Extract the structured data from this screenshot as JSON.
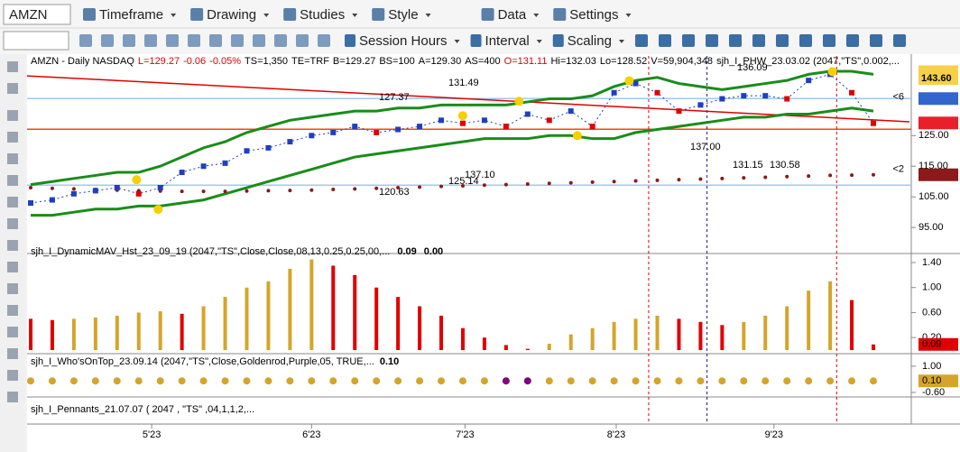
{
  "toolbar": {
    "symbol": "AMZN",
    "menus": [
      "Timeframe",
      "Drawing",
      "Studies",
      "Style",
      "Data",
      "Settings"
    ],
    "tools": [
      "Session Hours",
      "Interval",
      "Scaling"
    ]
  },
  "header": {
    "segments": [
      {
        "text": "AMZN - Daily NASDAQ",
        "color": "#000000"
      },
      {
        "text": "L=129.27",
        "color": "#e00000"
      },
      {
        "text": "-0.06",
        "color": "#e00000"
      },
      {
        "text": "-0.05%",
        "color": "#e00000"
      },
      {
        "text": "TS=1,350",
        "color": "#000000"
      },
      {
        "text": "TE=TRF",
        "color": "#000000"
      },
      {
        "text": "B=129.27",
        "color": "#000000"
      },
      {
        "text": "BS=100",
        "color": "#000000"
      },
      {
        "text": "A=129.30",
        "color": "#000000"
      },
      {
        "text": "AS=400",
        "color": "#000000"
      },
      {
        "text": "O=131.11",
        "color": "#e00000"
      },
      {
        "text": "Hi=132.03",
        "color": "#000000"
      },
      {
        "text": "Lo=128.52",
        "color": "#000000"
      },
      {
        "text": "V=59,904,348",
        "color": "#000000"
      },
      {
        "text": "sjh_I_PHW_23.03.02 (2047,\"TS\",0.002,...",
        "color": "#000000"
      }
    ]
  },
  "chart_data": [
    {
      "type": "price",
      "ylim": [
        86.8,
        151
      ],
      "xlim": [
        0,
        39
      ],
      "yticks": [
        {
          "value": 95,
          "label": "95.00"
        },
        {
          "value": 105,
          "label": "105.00"
        },
        {
          "value": 115,
          "label": "115.00"
        },
        {
          "value": 125,
          "label": "125.00"
        }
      ],
      "series": [
        {
          "name": "Close",
          "color": "#1f3fbf",
          "values": [
            103,
            104,
            106,
            107,
            108,
            106,
            108,
            113,
            115,
            116,
            120,
            121,
            123,
            125,
            126,
            128,
            126,
            127,
            128,
            130,
            129,
            130,
            128,
            132,
            130,
            133,
            128,
            139,
            142,
            139,
            133,
            135,
            137,
            138,
            138,
            137,
            143,
            145,
            139,
            129
          ]
        },
        {
          "name": "Upper band",
          "color": "#1a8c1a",
          "values": [
            109,
            110,
            111,
            112,
            113,
            113,
            115,
            118,
            121,
            123,
            126,
            128,
            130,
            131,
            132,
            133,
            133,
            134,
            134,
            135,
            135,
            135,
            135,
            136,
            137,
            137,
            138,
            141,
            143,
            144,
            142,
            141,
            140,
            141,
            142,
            143,
            145,
            146,
            146,
            145
          ]
        },
        {
          "name": "Lower band",
          "color": "#1a8c1a",
          "values": [
            99,
            99,
            100,
            101,
            101,
            102,
            102,
            103,
            104,
            106,
            108,
            110,
            112,
            114,
            116,
            118,
            119,
            120,
            121,
            122,
            123,
            124,
            124,
            124,
            125,
            125,
            124,
            124,
            126,
            127,
            128,
            129,
            130,
            131,
            131,
            132,
            132,
            133,
            134,
            133
          ]
        },
        {
          "name": "Slow MA",
          "color": "#8b1a1a",
          "values": [
            108,
            107.8,
            107.6,
            107.4,
            107.2,
            107,
            106.9,
            106.8,
            106.8,
            106.8,
            106.9,
            107,
            107.1,
            107.2,
            107.4,
            107.6,
            107.8,
            108,
            108.2,
            108.4,
            108.6,
            108.8,
            109,
            109.2,
            109.4,
            109.6,
            109.8,
            110,
            110.2,
            110.4,
            110.6,
            110.8,
            111,
            111.2,
            111.4,
            111.6,
            111.8,
            112,
            112.1,
            112.21
          ]
        }
      ],
      "up_color": "#1f3fbf",
      "down_color": "#e00000",
      "trendline": {
        "start": 144.5,
        "end": 129.5,
        "color": "#e00000"
      },
      "levels": [
        {
          "value": 137.08,
          "color": "#9ec9f0"
        },
        {
          "value": 127.07,
          "color": "#ff4500"
        },
        {
          "value": 108.8,
          "color": "#9ec9f0"
        }
      ],
      "pivots": {
        "x": [
          4.9,
          5.9,
          20,
          22.6,
          25.3,
          27.7,
          37.1
        ],
        "y": [
          110.6,
          100.9,
          131.5,
          136.2,
          125,
          142.9,
          145.9
        ],
        "color": "#f5d000"
      },
      "event_lines": [
        {
          "value": 28.6,
          "color": "#e00000"
        },
        {
          "value": 31.3,
          "color": "#1a1a80"
        },
        {
          "value": 37.3,
          "color": "#e00000"
        }
      ],
      "annotations": [
        {
          "value": 127.37,
          "label": "127.37"
        },
        {
          "value": 131.49,
          "label": "131.49"
        },
        {
          "value": 137.1,
          "label": "137.10"
        },
        {
          "value": 125.14,
          "label": "125.14"
        },
        {
          "value": 120.63,
          "label": "120.63"
        },
        {
          "value": 137,
          "label": "137.00"
        },
        {
          "value": 131.15,
          "label": "131.15"
        },
        {
          "value": 130.58,
          "label": "130.58"
        },
        {
          "value": 136.09,
          "label": "136.09"
        }
      ],
      "price_boxes": [
        {
          "value": 145.86,
          "color": "#f7d04a"
        },
        {
          "value": 143.6,
          "label": "143.60",
          "color": "#f7d04a"
        },
        {
          "value": 137.08,
          "color": "#3366cc"
        },
        {
          "value": 129.12,
          "color": "#e8202a"
        },
        {
          "value": 112.21,
          "color": "#8b1a1a"
        }
      ],
      "markers": [
        "<6",
        "<2"
      ],
      "xticks": [
        {
          "value": 5.6,
          "label": "5'23"
        },
        {
          "value": 13,
          "label": "6'23"
        },
        {
          "value": 20.1,
          "label": "7'23"
        },
        {
          "value": 27.1,
          "label": "8'23"
        },
        {
          "value": 34.4,
          "label": "9'23"
        }
      ]
    },
    {
      "type": "histogram",
      "title": "sjh_I_DynamicMAV_Hst_23_09_19 (2047,\"TS\",Close,Close,08,13,0.25,0.25,00,...",
      "readouts": [
        {
          "value": 0.09,
          "label": "0.09",
          "color": "#e00000"
        },
        {
          "value": 0,
          "label": "0.00",
          "color": "#999999"
        }
      ],
      "ylim": [
        0,
        1.53
      ],
      "yticks": [
        {
          "value": 0.2,
          "label": "0.20"
        },
        {
          "value": 0.6,
          "label": "0.60"
        },
        {
          "value": 1,
          "label": "1.00"
        },
        {
          "value": 1.4,
          "label": "1.40"
        }
      ],
      "up_color": "#d4a52a",
      "down_color": "#e00000",
      "values": [
        0.5,
        0.48,
        0.5,
        0.52,
        0.55,
        0.6,
        0.62,
        0.58,
        0.7,
        0.85,
        1,
        1.1,
        1.3,
        1.45,
        1.35,
        1.2,
        1,
        0.85,
        0.7,
        0.55,
        0.35,
        0.2,
        0.08,
        0.02,
        0.1,
        0.25,
        0.35,
        0.45,
        0.5,
        0.55,
        0.5,
        0.45,
        0.4,
        0.45,
        0.55,
        0.7,
        0.95,
        1.1,
        0.8,
        0.09
      ],
      "last": {
        "value": 0.09,
        "label": "0.09",
        "color": "#e00000"
      }
    },
    {
      "type": "dots",
      "title": "sjh_I_Who'sOnTop_23.09.14 (2047,\"TS\",Close,Goldenrod,Purple,05,  TRUE,...",
      "readout": {
        "value": 0.1,
        "label": "0.10"
      },
      "ylim": [
        -0.88,
        1.6
      ],
      "yticks": [
        {
          "value": 1,
          "label": "1.00"
        },
        {
          "value": -0.6,
          "label": "-0.60"
        }
      ],
      "color": "#d4a52a",
      "highlight_color": "#800080",
      "highlight": [
        22,
        23
      ],
      "values": [
        0.1,
        0.1,
        0.1,
        0.1,
        0.1,
        0.1,
        0.1,
        0.1,
        0.1,
        0.1,
        0.1,
        0.1,
        0.1,
        0.1,
        0.1,
        0.1,
        0.1,
        0.1,
        0.1,
        0.1,
        0.1,
        0.1,
        0.1,
        0.1,
        0.1,
        0.1,
        0.1,
        0.1,
        0.1,
        0.1,
        0.1,
        0.1,
        0.1,
        0.1,
        0.1,
        0.1,
        0.1,
        0.1,
        0.1,
        0.1
      ],
      "last": {
        "value": 0.1,
        "label": "0.10"
      }
    },
    {
      "type": "pennants",
      "title": "sjh_I_Pennants_21.07.07 (  2047 ,  \"TS\" ,04,1,1,2,..."
    }
  ]
}
